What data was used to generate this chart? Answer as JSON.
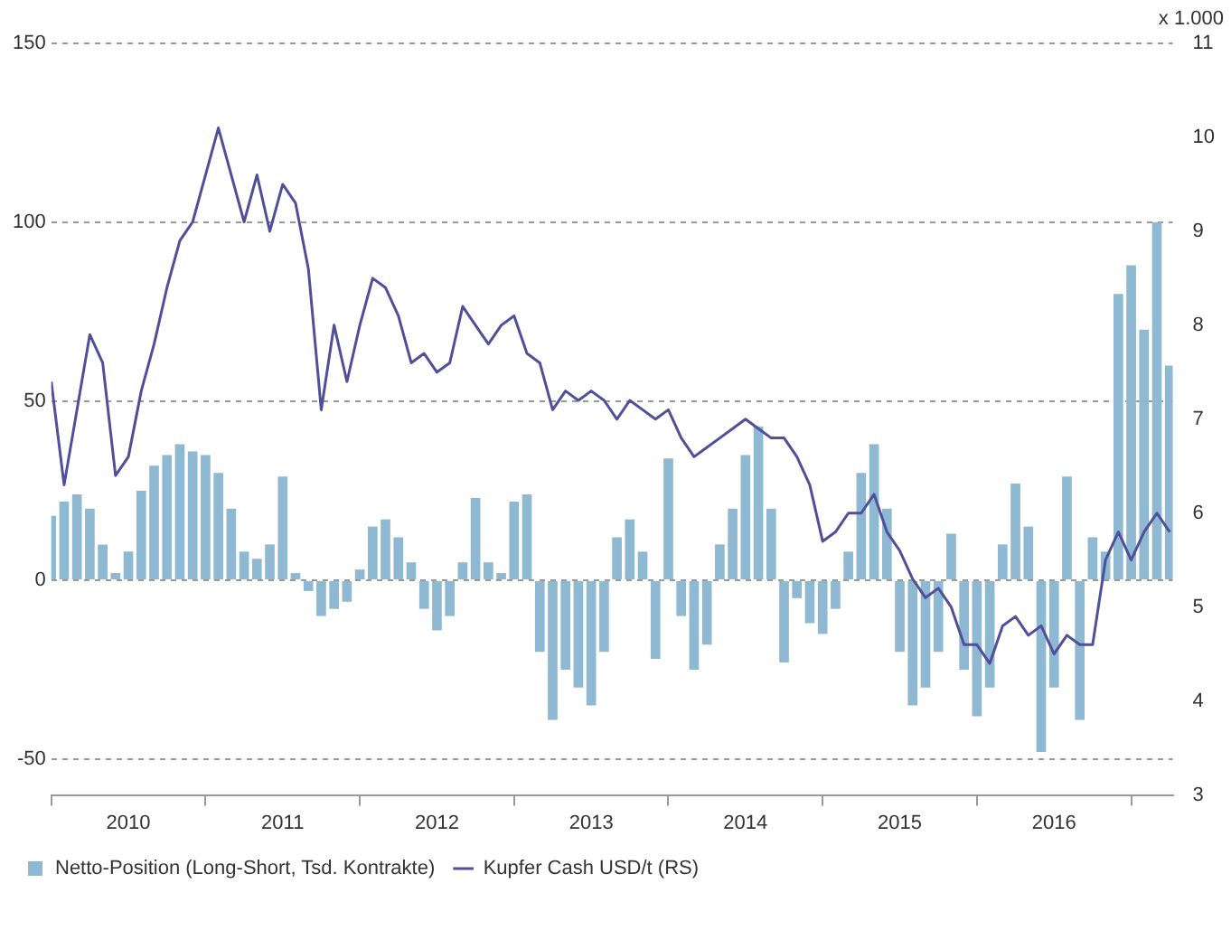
{
  "chart_data": {
    "type": "bar",
    "y2label": "x 1.000",
    "xlim": [
      "2010-01",
      "2017-04-08"
    ],
    "xticks": [
      {
        "value": "2010",
        "label": null
      },
      {
        "value": "2010-07",
        "label": "2010"
      },
      {
        "value": "2011",
        "label": null
      },
      {
        "value": "2011-07",
        "label": "2011"
      },
      {
        "value": "2012",
        "label": null
      },
      {
        "value": "2012-07",
        "label": "2012"
      },
      {
        "value": "2013",
        "label": null
      },
      {
        "value": "2013-07",
        "label": "2013"
      },
      {
        "value": "2014",
        "label": null
      },
      {
        "value": "2014-07",
        "label": "2014"
      },
      {
        "value": "2015",
        "label": null
      },
      {
        "value": "2015-07",
        "label": "2015"
      },
      {
        "value": "2016",
        "label": null
      },
      {
        "value": "2016-07",
        "label": "2016"
      },
      {
        "value": "2017",
        "label": null
      }
    ],
    "ylim": [
      -60,
      150
    ],
    "yticks": [
      -50,
      0,
      50,
      100,
      150
    ],
    "y2lim": [
      3,
      11
    ],
    "y2ticks": [
      3,
      4,
      5,
      6,
      7,
      8,
      9,
      10,
      11
    ],
    "grid": "y",
    "legend": "bottom",
    "x": [
      "2010-01",
      "2010-02",
      "2010-03",
      "2010-04",
      "2010-05",
      "2010-06",
      "2010-07",
      "2010-08",
      "2010-09",
      "2010-10",
      "2010-11",
      "2010-12",
      "2011-01",
      "2011-02",
      "2011-03",
      "2011-04",
      "2011-05",
      "2011-06",
      "2011-07",
      "2011-08",
      "2011-09",
      "2011-10",
      "2011-11",
      "2011-12",
      "2012-01",
      "2012-02",
      "2012-03",
      "2012-04",
      "2012-05",
      "2012-06",
      "2012-07",
      "2012-08",
      "2012-09",
      "2012-10",
      "2012-11",
      "2012-12",
      "2013-01",
      "2013-02",
      "2013-03",
      "2013-04",
      "2013-05",
      "2013-06",
      "2013-07",
      "2013-08",
      "2013-09",
      "2013-10",
      "2013-11",
      "2013-12",
      "2014-01",
      "2014-02",
      "2014-03",
      "2014-04",
      "2014-05",
      "2014-06",
      "2014-07",
      "2014-08",
      "2014-09",
      "2014-10",
      "2014-11",
      "2014-12",
      "2015-01",
      "2015-02",
      "2015-03",
      "2015-04",
      "2015-05",
      "2015-06",
      "2015-07",
      "2015-08",
      "2015-09",
      "2015-10",
      "2015-11",
      "2015-12",
      "2016-01",
      "2016-02",
      "2016-03",
      "2016-04",
      "2016-05",
      "2016-06",
      "2016-07",
      "2016-08",
      "2016-09",
      "2016-10",
      "2016-11",
      "2016-12",
      "2017-01",
      "2017-02",
      "2017-03",
      "2017-04"
    ],
    "series": [
      {
        "name": "Netto-Position (Long-Short, Tsd. Kontrakte)",
        "color": "#8fb8d2",
        "values": [
          18,
          22,
          24,
          20,
          10,
          2,
          8,
          25,
          32,
          35,
          38,
          36,
          35,
          30,
          20,
          8,
          6,
          10,
          29,
          2,
          -3,
          -10,
          -8,
          -6,
          3,
          15,
          17,
          12,
          5,
          -8,
          -14,
          -10,
          5,
          23,
          5,
          2,
          22,
          24,
          -20,
          -39,
          -25,
          -30,
          -35,
          -20,
          12,
          17,
          8,
          -22,
          34,
          -10,
          -25,
          -18,
          10,
          20,
          35,
          43,
          20,
          -23,
          -5,
          -12,
          -15,
          -8,
          8,
          30,
          38,
          20,
          -20,
          -35,
          -30,
          -20,
          13,
          -25,
          -38,
          -30,
          10,
          27,
          15,
          -48,
          -30,
          29,
          -39,
          12,
          8,
          80,
          88,
          70,
          100,
          60
        ]
      },
      {
        "name": "Kupfer Cash USD/t (RS)",
        "type": "line",
        "axis": "y2",
        "color": "#4f4f9a",
        "values": [
          7.4,
          6.3,
          7.1,
          7.9,
          7.6,
          6.4,
          6.6,
          7.3,
          7.8,
          8.4,
          8.9,
          9.1,
          9.6,
          10.1,
          9.6,
          9.1,
          9.6,
          9.0,
          9.5,
          9.3,
          8.6,
          7.1,
          8.0,
          7.4,
          8.0,
          8.5,
          8.4,
          8.1,
          7.6,
          7.7,
          7.5,
          7.6,
          8.2,
          8.0,
          7.8,
          8.0,
          8.1,
          7.7,
          7.6,
          7.1,
          7.3,
          7.2,
          7.3,
          7.2,
          7.0,
          7.2,
          7.1,
          7.0,
          7.1,
          6.8,
          6.6,
          6.7,
          6.8,
          6.9,
          7.0,
          6.9,
          6.8,
          6.8,
          6.6,
          6.3,
          5.7,
          5.8,
          6.0,
          6.0,
          6.2,
          5.8,
          5.6,
          5.3,
          5.1,
          5.2,
          5.0,
          4.6,
          4.6,
          4.4,
          4.8,
          4.9,
          4.7,
          4.8,
          4.5,
          4.7,
          4.6,
          4.6,
          5.5,
          5.8,
          5.5,
          5.8,
          6.0,
          5.8
        ]
      }
    ]
  }
}
